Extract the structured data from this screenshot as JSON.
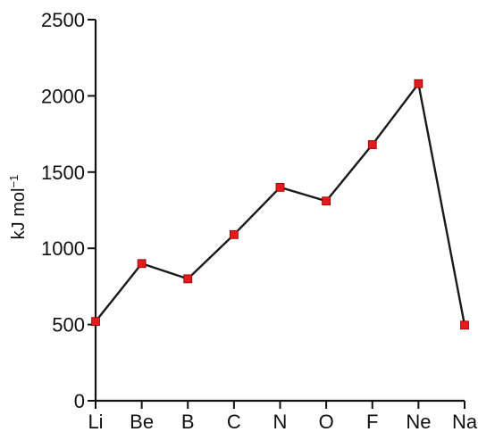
{
  "chart_data": {
    "type": "line",
    "title": "",
    "xlabel": "",
    "ylabel": "kJ mol",
    "ylabel_superscript": "−1",
    "categories": [
      "Li",
      "Be",
      "B",
      "C",
      "N",
      "O",
      "F",
      "Ne",
      "Na"
    ],
    "series": [
      {
        "values": [
          520,
          900,
          800,
          1090,
          1400,
          1310,
          1680,
          2080,
          496
        ]
      }
    ],
    "yticks": [
      0,
      500,
      1000,
      1500,
      2000,
      2500
    ],
    "ylim": [
      0,
      2500
    ],
    "grid": false,
    "legend": "none",
    "colors": {
      "line": "#1a1a1a",
      "marker": "#e41a1c",
      "axis": "#111111"
    }
  }
}
